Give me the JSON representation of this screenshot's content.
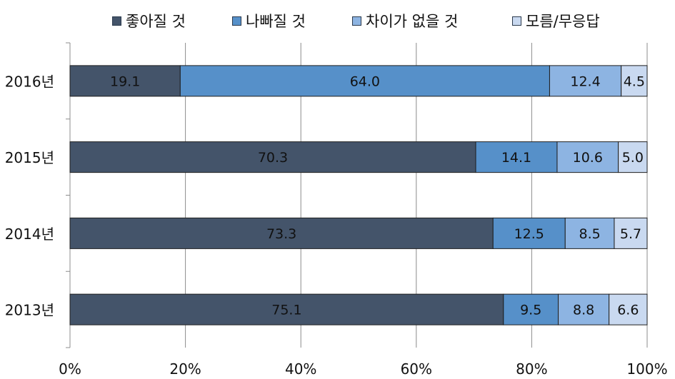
{
  "chart_data": {
    "type": "bar",
    "orientation": "horizontal",
    "stacked": true,
    "categories": [
      "2016년",
      "2015년",
      "2014년",
      "2013년"
    ],
    "series": [
      {
        "name": "좋아질 것",
        "color": "#44546a",
        "values": [
          19.1,
          70.3,
          73.3,
          75.1
        ]
      },
      {
        "name": "나빠질 것",
        "color": "#5690c9",
        "values": [
          64.0,
          14.1,
          12.5,
          9.5
        ]
      },
      {
        "name": "차이가 없을 것",
        "color": "#8db4e2",
        "values": [
          12.4,
          10.6,
          8.5,
          8.8
        ]
      },
      {
        "name": "모름/무응답",
        "color": "#c9d9f0",
        "values": [
          4.5,
          5.0,
          5.7,
          6.6
        ]
      }
    ],
    "data_labels": [
      [
        "19.1",
        "64.0",
        "12.4",
        "4.5"
      ],
      [
        "70.3",
        "14.1",
        "10.6",
        "5.0"
      ],
      [
        "73.3",
        "12.5",
        "8.5",
        "5.7"
      ],
      [
        "75.1",
        "9.5",
        "8.8",
        "6.6"
      ]
    ],
    "x_ticks": [
      "0%",
      "20%",
      "40%",
      "60%",
      "80%",
      "100%"
    ],
    "xlim": [
      0,
      100
    ],
    "grid": true,
    "legend_position": "top"
  }
}
